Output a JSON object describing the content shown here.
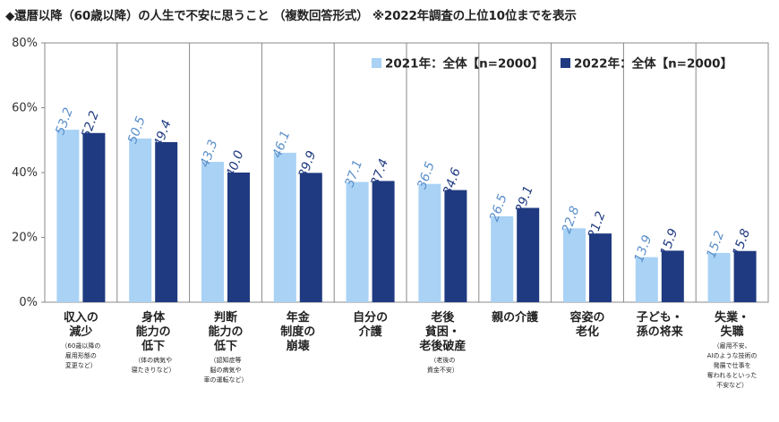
{
  "title": "◆還暦以降（60歳以降）の人生で不安に思うこと （複数回答形式） ※2022年調査の上位10位までを表示",
  "chart_data": {
    "type": "bar",
    "ylim": [
      0,
      80
    ],
    "yticks": [
      "0%",
      "20%",
      "40%",
      "60%",
      "80%"
    ],
    "grid": false,
    "legend_position": "top-right",
    "categories": [
      {
        "label": "収入の\n減少",
        "note": "（60歳以降の\n雇用形態の\n変更など）"
      },
      {
        "label": "身体\n能力の\n低下",
        "note": "（体の病気や\n寝たきりなど）"
      },
      {
        "label": "判断\n能力の\n低下",
        "note": "（認知症等\n脳の病気や\n車の運転など）"
      },
      {
        "label": "年金\n制度の\n崩壊",
        "note": ""
      },
      {
        "label": "自分の\n介護",
        "note": ""
      },
      {
        "label": "老後\n貧困・\n老後破産",
        "note": "（老後の\n資金不安）"
      },
      {
        "label": "親の介護",
        "note": ""
      },
      {
        "label": "容姿の\n老化",
        "note": ""
      },
      {
        "label": "子ども・\n孫の将来",
        "note": ""
      },
      {
        "label": "失業・\n失職",
        "note": "（雇用不安、\nAIのような技術の\n発展で仕事を\n奪われるといった\n不安など）"
      }
    ],
    "series": [
      {
        "name": "2021年：全体【n=2000】",
        "color": "#a9d2f5",
        "label_color": "#5b8fc9",
        "values": [
          53.2,
          50.5,
          43.3,
          46.1,
          37.1,
          36.5,
          26.5,
          22.8,
          13.9,
          15.2
        ]
      },
      {
        "name": "2022年：全体【n=2000】",
        "color": "#1f3a80",
        "label_color": "#1f3a80",
        "values": [
          52.2,
          49.4,
          40.0,
          39.9,
          37.4,
          34.6,
          29.1,
          21.2,
          15.9,
          15.8
        ]
      }
    ]
  }
}
